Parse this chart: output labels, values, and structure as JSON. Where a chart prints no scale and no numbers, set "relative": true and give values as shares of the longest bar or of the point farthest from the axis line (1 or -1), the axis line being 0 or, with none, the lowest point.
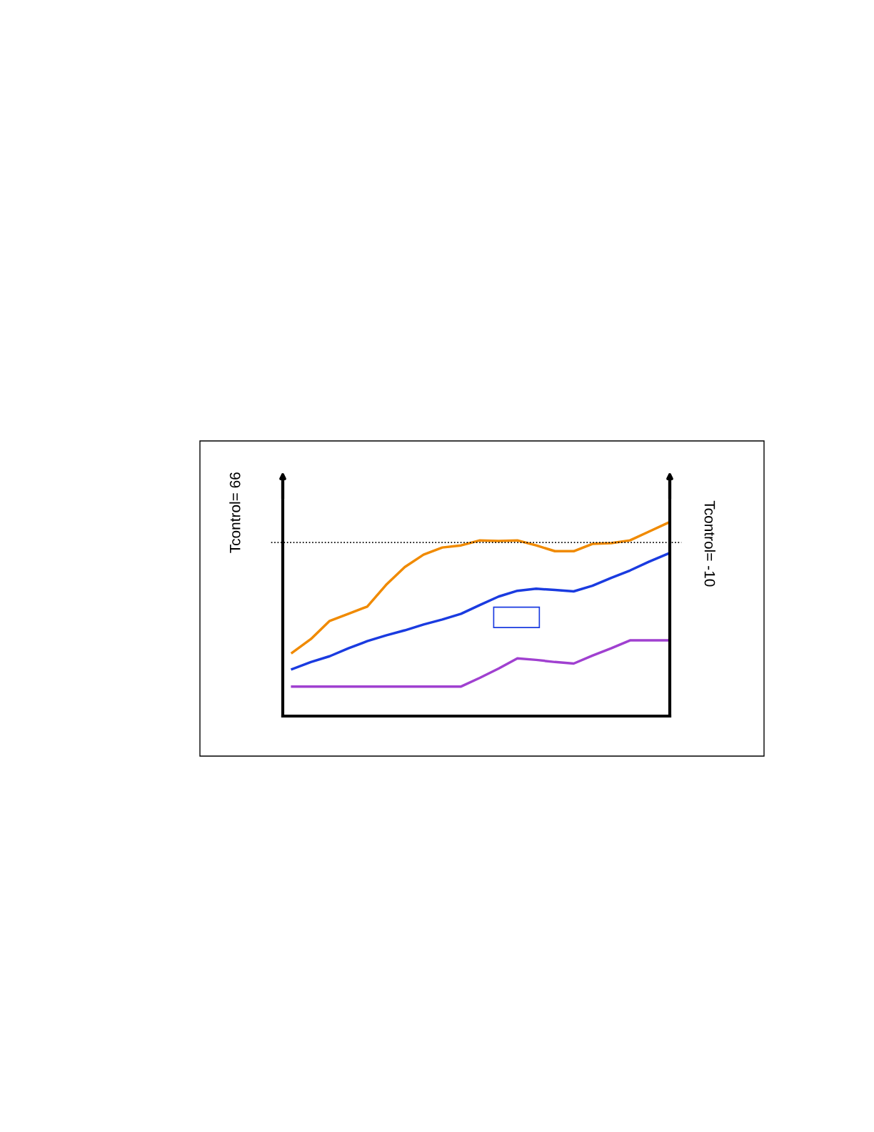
{
  "chart_data": {
    "type": "line",
    "relative": true,
    "categories": [
      null,
      null,
      null,
      null,
      null,
      null,
      null,
      null,
      null,
      null,
      null,
      null,
      null,
      null,
      null,
      null,
      null,
      null,
      null,
      null,
      null
    ],
    "series": [
      {
        "color": "#f08a00",
        "values": [
          0.328,
          0.399,
          0.493,
          0.53,
          0.567,
          0.679,
          0.772,
          0.836,
          0.873,
          0.884,
          0.91,
          0.907,
          0.91,
          0.884,
          0.854,
          0.854,
          0.892,
          0.896,
          0.91,
          0.955,
          1.0
        ]
      },
      {
        "color": "#1a3be0",
        "values": [
          0.243,
          0.28,
          0.31,
          0.351,
          0.388,
          0.418,
          0.444,
          0.474,
          0.5,
          0.53,
          0.575,
          0.619,
          0.649,
          0.66,
          0.653,
          0.646,
          0.675,
          0.716,
          0.754,
          0.799,
          0.84
        ]
      },
      {
        "color": "#a040d0",
        "values": [
          0.153,
          0.153,
          0.153,
          0.153,
          0.153,
          0.153,
          0.153,
          0.153,
          0.153,
          0.153,
          0.198,
          0.246,
          0.299,
          0.291,
          0.28,
          0.272,
          0.313,
          0.351,
          0.392,
          0.392,
          0.392
        ]
      }
    ],
    "ref_lines": [
      {
        "axis": "y",
        "value": 0.899,
        "color": "#000000",
        "line_style": "dotted"
      }
    ],
    "annotations": [
      "Tcontrol= 66",
      "Tcontrol= -10"
    ],
    "legend": false
  }
}
